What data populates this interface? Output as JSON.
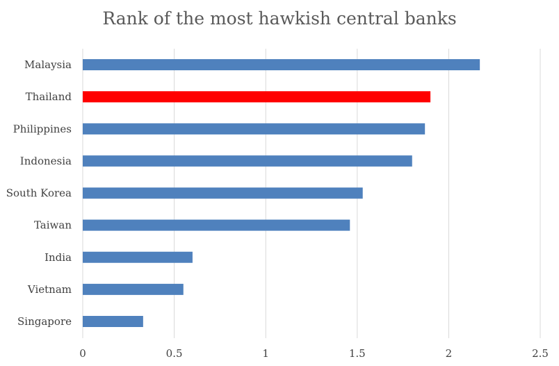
{
  "chart_data": {
    "type": "bar",
    "orientation": "horizontal",
    "title": "Rank of the most hawkish central banks",
    "xlabel": "",
    "ylabel": "",
    "categories": [
      "Malaysia",
      "Thailand",
      "Philippines",
      "Indonesia",
      "South Korea",
      "Taiwan",
      "India",
      "Vietnam",
      "Singapore"
    ],
    "values": [
      2.17,
      1.9,
      1.87,
      1.8,
      1.53,
      1.46,
      0.6,
      0.55,
      0.33
    ],
    "bar_colors": [
      "#4f81bd",
      "#ff0000",
      "#4f81bd",
      "#4f81bd",
      "#4f81bd",
      "#4f81bd",
      "#4f81bd",
      "#4f81bd",
      "#4f81bd"
    ],
    "xlim": [
      0,
      2.5
    ],
    "x_ticks": [
      "0",
      "0.5",
      "1",
      "1.5",
      "2",
      "2.5"
    ],
    "grid": "vertical",
    "legend": "none"
  }
}
